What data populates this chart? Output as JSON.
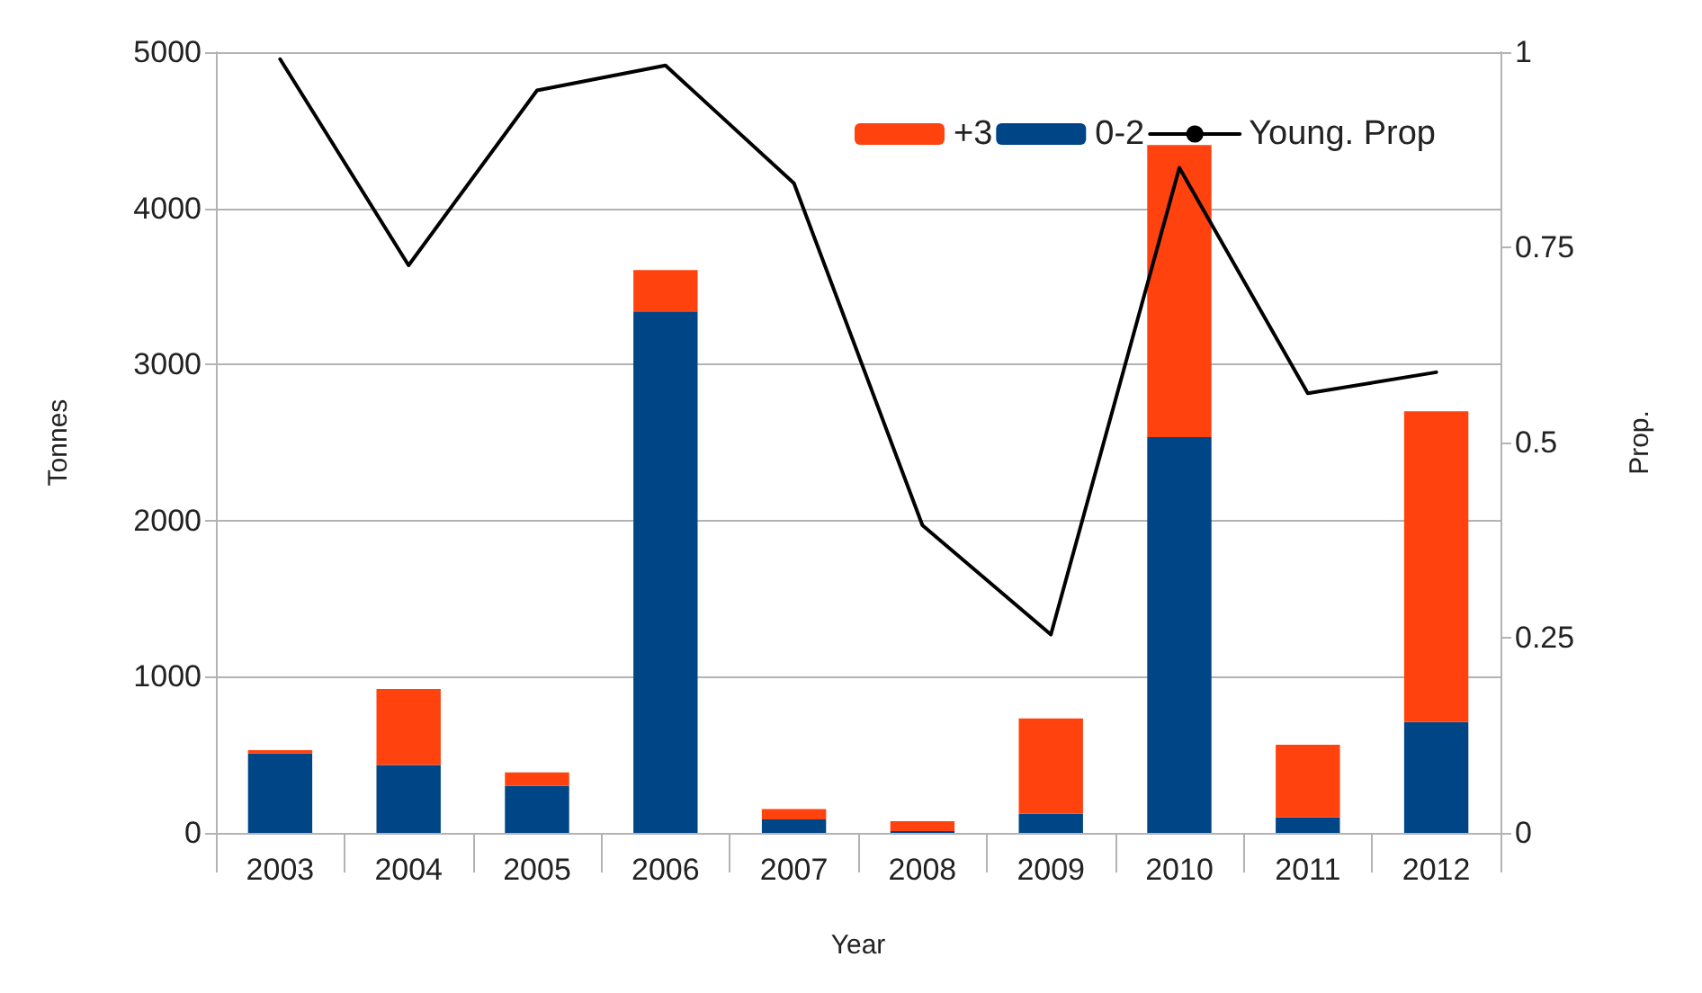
{
  "chart_data": {
    "type": "bar",
    "stacked": true,
    "xlabel": "Year",
    "ylabel": "Tonnes",
    "y2label": "Prop.",
    "categories": [
      "2003",
      "2004",
      "2005",
      "2006",
      "2007",
      "2008",
      "2009",
      "2010",
      "2011",
      "2012"
    ],
    "series": [
      {
        "name": "0-2",
        "color": "#004586",
        "values": [
          510,
          435,
          301,
          3340,
          86,
          11,
          123,
          2535,
          100,
          710
        ]
      },
      {
        "name": "+3",
        "color": "#ff420e",
        "values": [
          20,
          487,
          86,
          265,
          67,
          64,
          610,
          1870,
          465,
          1990
        ]
      },
      {
        "name": "Young. Prop",
        "type": "line",
        "axis": "y2",
        "color": "#000000",
        "values": [
          0.991,
          0.727,
          0.951,
          0.983,
          0.832,
          0.394,
          0.254,
          0.852,
          0.563,
          0.59
        ]
      }
    ],
    "ylim": [
      0,
      5000
    ],
    "yticks": [
      0,
      1000,
      2000,
      3000,
      4000,
      5000
    ],
    "y2lim": [
      0,
      1
    ],
    "y2ticks": [
      0,
      0.25,
      0.5,
      0.75,
      1
    ],
    "grid": "y",
    "legend": "top right",
    "marker": "none",
    "line_style": "solid"
  }
}
